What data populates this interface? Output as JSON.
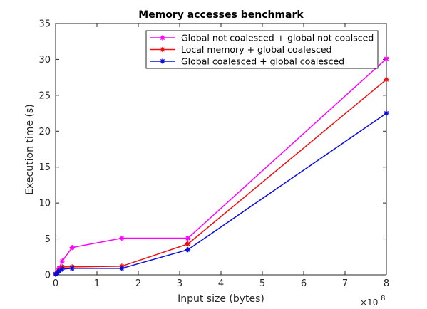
{
  "chart_data": {
    "type": "line",
    "title": "Memory accesses benchmark",
    "xlabel": "Input size (bytes)",
    "ylabel": "Execution time (s)",
    "x_exponent_base": "×10",
    "x_exponent_power": "8",
    "x_scale": 100000000,
    "xlim": [
      0,
      8
    ],
    "ylim": [
      0,
      35
    ],
    "x_ticks": [
      0,
      1,
      2,
      3,
      4,
      5,
      6,
      7,
      8
    ],
    "y_ticks": [
      0,
      5,
      10,
      15,
      20,
      25,
      30,
      35
    ],
    "grid": false,
    "legend_position": "top-right",
    "x": [
      0,
      0.04,
      0.08,
      0.16,
      0.4,
      1.6,
      3.2,
      8
    ],
    "series": [
      {
        "name": "Global not coalesced + global not coalsced",
        "color": "#ff00ff",
        "values": [
          0.1,
          0.5,
          0.9,
          1.9,
          3.8,
          5.1,
          5.1,
          30.1
        ]
      },
      {
        "name": "Local memory + global coalesced",
        "color": "#ee1111",
        "values": [
          0.1,
          0.3,
          0.6,
          1.1,
          1.1,
          1.2,
          4.3,
          27.2
        ]
      },
      {
        "name": "Global coalesced + global coalesced",
        "color": "#0b0bdd",
        "values": [
          0.1,
          0.3,
          0.5,
          0.8,
          0.9,
          0.9,
          3.5,
          22.5
        ]
      }
    ]
  }
}
